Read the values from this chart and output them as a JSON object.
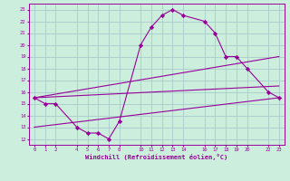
{
  "xlabel": "Windchill (Refroidissement éolien,°C)",
  "ylabel": "",
  "bg_color": "#cceedd",
  "grid_color": "#aacccc",
  "line_color": "#990099",
  "line1_x": [
    0,
    1,
    2,
    4,
    5,
    6,
    7,
    8,
    10,
    11,
    12,
    13,
    14,
    16,
    17,
    18,
    19,
    20,
    22,
    23
  ],
  "line1_y": [
    15.5,
    15.0,
    15.0,
    13.0,
    12.5,
    12.5,
    12.0,
    13.5,
    20.0,
    21.5,
    22.5,
    23.0,
    22.5,
    22.0,
    21.0,
    19.0,
    19.0,
    18.0,
    16.0,
    15.5
  ],
  "line2_x": [
    0,
    23
  ],
  "line2_y": [
    15.5,
    19.0
  ],
  "line3_x": [
    0,
    23
  ],
  "line3_y": [
    15.5,
    16.5
  ],
  "line4_x": [
    0,
    23
  ],
  "line4_y": [
    13.0,
    15.5
  ],
  "xlim": [
    -0.5,
    23.5
  ],
  "ylim": [
    11.5,
    23.5
  ],
  "xticks": [
    0,
    1,
    2,
    4,
    5,
    6,
    7,
    8,
    10,
    11,
    12,
    13,
    14,
    16,
    17,
    18,
    19,
    20,
    22,
    23
  ],
  "yticks": [
    12,
    13,
    14,
    15,
    16,
    17,
    18,
    19,
    20,
    21,
    22,
    23
  ]
}
